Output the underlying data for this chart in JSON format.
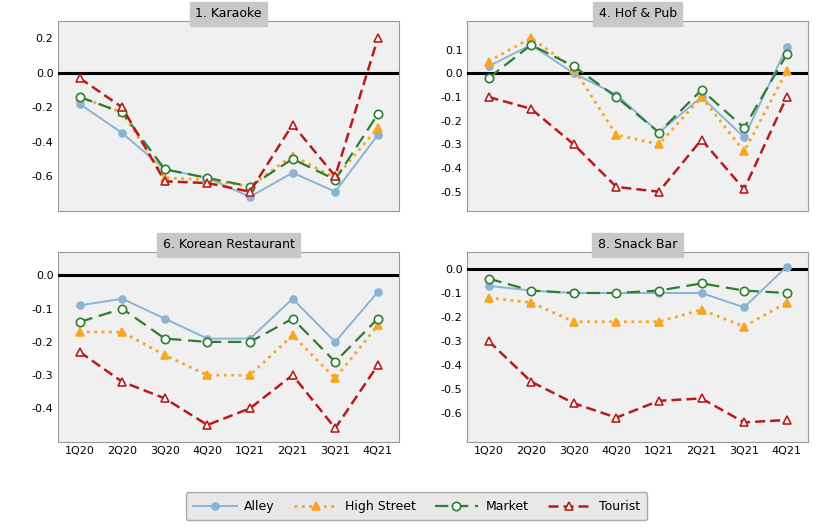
{
  "x_labels": [
    "1Q20",
    "2Q20",
    "3Q20",
    "4Q20",
    "1Q21",
    "2Q21",
    "3Q21",
    "4Q21"
  ],
  "panels": [
    {
      "title": "1. Karaoke",
      "ylim": [
        -0.8,
        0.3
      ],
      "yticks": [
        0.2,
        0.0,
        -0.2,
        -0.4,
        -0.6
      ],
      "series": {
        "Alley": [
          -0.18,
          -0.35,
          -0.56,
          -0.61,
          -0.72,
          -0.58,
          -0.69,
          -0.36
        ],
        "High Street": [
          -0.14,
          -0.23,
          -0.61,
          -0.62,
          -0.66,
          -0.48,
          -0.61,
          -0.32
        ],
        "Market": [
          -0.14,
          -0.23,
          -0.56,
          -0.61,
          -0.66,
          -0.5,
          -0.62,
          -0.24
        ],
        "Tourist": [
          -0.03,
          -0.2,
          -0.63,
          -0.64,
          -0.69,
          -0.3,
          -0.6,
          0.2
        ]
      }
    },
    {
      "title": "4. Hof & Pub",
      "ylim": [
        -0.58,
        0.22
      ],
      "yticks": [
        0.1,
        0.0,
        -0.1,
        -0.2,
        -0.3,
        -0.4,
        -0.5
      ],
      "series": {
        "Alley": [
          0.03,
          0.12,
          0.0,
          -0.09,
          -0.25,
          -0.1,
          -0.27,
          0.11
        ],
        "High Street": [
          0.05,
          0.15,
          0.02,
          -0.26,
          -0.3,
          -0.1,
          -0.33,
          0.01
        ],
        "Market": [
          -0.02,
          0.12,
          0.03,
          -0.1,
          -0.25,
          -0.07,
          -0.23,
          0.08
        ],
        "Tourist": [
          -0.1,
          -0.15,
          -0.3,
          -0.48,
          -0.5,
          -0.28,
          -0.49,
          -0.1
        ]
      }
    },
    {
      "title": "6. Korean Restaurant",
      "ylim": [
        -0.5,
        0.07
      ],
      "yticks": [
        0.0,
        -0.1,
        -0.2,
        -0.3,
        -0.4
      ],
      "series": {
        "Alley": [
          -0.09,
          -0.07,
          -0.13,
          -0.19,
          -0.19,
          -0.07,
          -0.2,
          -0.05
        ],
        "High Street": [
          -0.17,
          -0.17,
          -0.24,
          -0.3,
          -0.3,
          -0.18,
          -0.31,
          -0.15
        ],
        "Market": [
          -0.14,
          -0.1,
          -0.19,
          -0.2,
          -0.2,
          -0.13,
          -0.26,
          -0.13
        ],
        "Tourist": [
          -0.23,
          -0.32,
          -0.37,
          -0.45,
          -0.4,
          -0.3,
          -0.46,
          -0.27
        ]
      }
    },
    {
      "title": "8. Snack Bar",
      "ylim": [
        -0.72,
        0.07
      ],
      "yticks": [
        0.0,
        -0.1,
        -0.2,
        -0.3,
        -0.4,
        -0.5,
        -0.6
      ],
      "series": {
        "Alley": [
          -0.07,
          -0.09,
          -0.1,
          -0.1,
          -0.1,
          -0.1,
          -0.16,
          0.01
        ],
        "High Street": [
          -0.12,
          -0.14,
          -0.22,
          -0.22,
          -0.22,
          -0.17,
          -0.24,
          -0.14
        ],
        "Market": [
          -0.04,
          -0.09,
          -0.1,
          -0.1,
          -0.09,
          -0.06,
          -0.09,
          -0.1
        ],
        "Tourist": [
          -0.3,
          -0.47,
          -0.56,
          -0.62,
          -0.55,
          -0.54,
          -0.64,
          -0.63
        ]
      }
    }
  ],
  "series_order": [
    "Alley",
    "High Street",
    "Market",
    "Tourist"
  ],
  "series_styles": {
    "Alley": {
      "color": "#8ab4d4",
      "linestyle": "-",
      "marker": "o",
      "markersize": 5,
      "linewidth": 1.4,
      "markerfacecolor": "#8ab4d4",
      "markeredgecolor": "#8ab4d4",
      "dashes": null
    },
    "High Street": {
      "color": "#f5a623",
      "linestyle": ":",
      "marker": "^",
      "markersize": 6,
      "linewidth": 2.0,
      "markerfacecolor": "#f5a623",
      "markeredgecolor": "#f5a623",
      "dashes": null
    },
    "Market": {
      "color": "#2e7d32",
      "linestyle": "--",
      "marker": "o",
      "markersize": 6,
      "linewidth": 1.6,
      "markerfacecolor": "white",
      "markeredgecolor": "#2e7d32",
      "dashes": [
        6,
        3
      ]
    },
    "Tourist": {
      "color": "#b71c1c",
      "linestyle": "--",
      "marker": "^",
      "markersize": 6,
      "linewidth": 1.8,
      "markerfacecolor": "white",
      "markeredgecolor": "#b71c1c",
      "dashes": [
        4,
        2
      ]
    }
  },
  "figure_facecolor": "#ffffff",
  "outer_bg": "#d0d0d0",
  "panel_facecolor": "#f0f0f0",
  "title_band_color": "#c8c8c8",
  "figsize": [
    8.33,
    5.32
  ],
  "dpi": 100
}
